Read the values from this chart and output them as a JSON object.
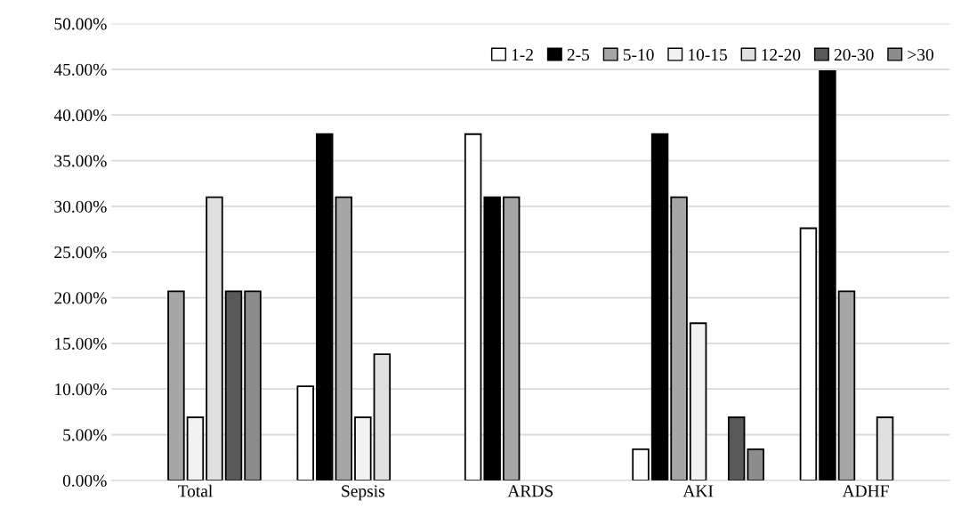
{
  "chart_data": {
    "type": "bar",
    "categories": [
      "Total",
      "Sepsis",
      "ARDS",
      "AKI",
      "ADHF"
    ],
    "series": [
      {
        "name": "1-2",
        "color": "#ffffff",
        "values": [
          0,
          10.3,
          37.9,
          3.4,
          27.6
        ]
      },
      {
        "name": "2-5",
        "color": "#000000",
        "values": [
          0,
          37.9,
          31.0,
          37.9,
          44.8
        ]
      },
      {
        "name": "5-10",
        "color": "#a6a6a6",
        "values": [
          20.7,
          31.0,
          31.0,
          31.0,
          20.7
        ]
      },
      {
        "name": "10-15",
        "color": "#f2f2f2",
        "values": [
          6.9,
          6.9,
          0,
          17.2,
          0
        ]
      },
      {
        "name": "12-20",
        "color": "#e0e0e0",
        "values": [
          31.0,
          13.8,
          0,
          0,
          6.9
        ]
      },
      {
        "name": "20-30",
        "color": "#595959",
        "values": [
          20.7,
          0,
          0,
          6.9,
          0
        ]
      },
      {
        "name": ">30",
        "color": "#8c8c8c",
        "values": [
          20.7,
          0,
          0,
          3.4,
          0
        ]
      }
    ],
    "ylim": [
      0,
      50
    ],
    "yticks": [
      {
        "value": 0,
        "label": "0.00%"
      },
      {
        "value": 5,
        "label": "5.00%"
      },
      {
        "value": 10,
        "label": "10.00%"
      },
      {
        "value": 15,
        "label": "15.00%"
      },
      {
        "value": 20,
        "label": "20.00%"
      },
      {
        "value": 25,
        "label": "25.00%"
      },
      {
        "value": 30,
        "label": "30.00%"
      },
      {
        "value": 35,
        "label": "35.00%"
      },
      {
        "value": 40,
        "label": "40.00%"
      },
      {
        "value": 45,
        "label": "45.00%"
      },
      {
        "value": 50,
        "label": "50.00%"
      }
    ],
    "grid": "y",
    "legend": "top right"
  }
}
